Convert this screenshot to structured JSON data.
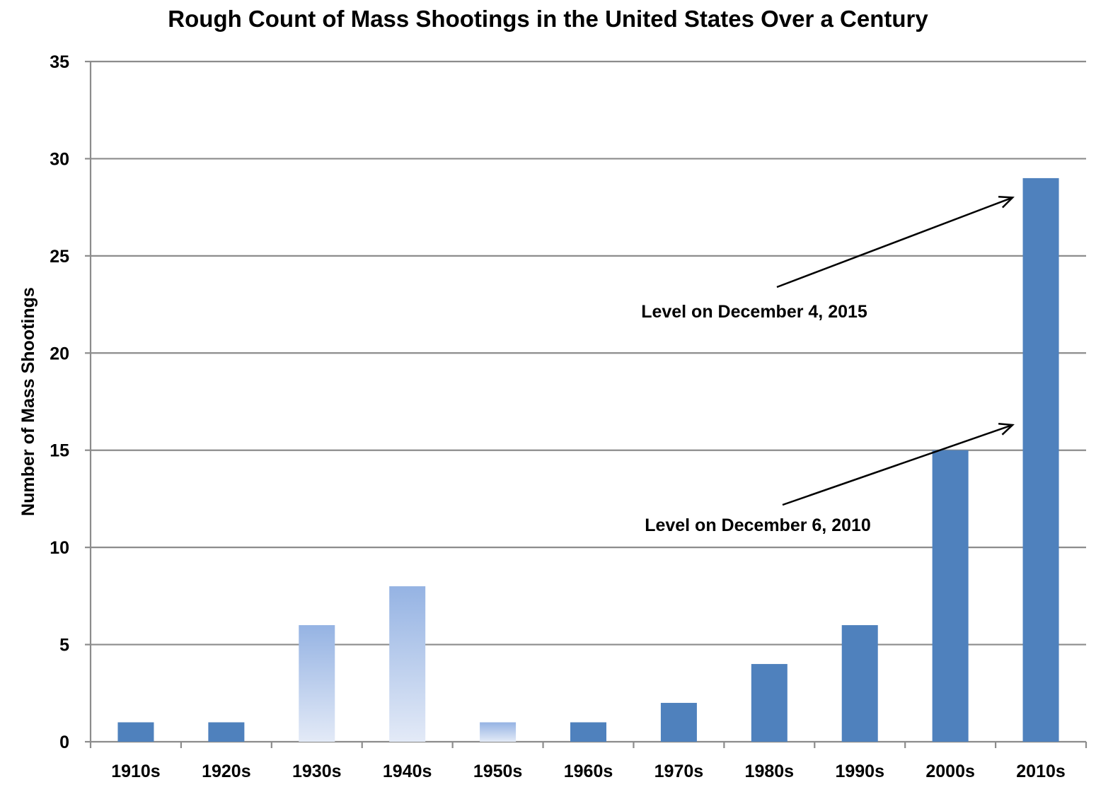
{
  "colors": {
    "bar": "#4F81BD",
    "bar_light_top": "#95B3E3",
    "bar_light_bottom": "#E3EAF7",
    "grid": "#8C8C8C",
    "axis": "#8C8C8C",
    "text": "#000000"
  },
  "chart_data": {
    "type": "bar",
    "title": "Rough Count of Mass Shootings in the United States Over a Century",
    "xlabel": "",
    "ylabel": "Number of Mass Shootings",
    "ylim": [
      0,
      35
    ],
    "yticks": [
      0,
      5,
      10,
      15,
      20,
      25,
      30,
      35
    ],
    "grid": true,
    "categories": [
      "1910s",
      "1920s",
      "1930s",
      "1940s",
      "1950s",
      "1960s",
      "1970s",
      "1980s",
      "1990s",
      "2000s",
      "2010s"
    ],
    "values": [
      1,
      1,
      6,
      8,
      1,
      1,
      2,
      4,
      6,
      15,
      29
    ],
    "bar_styles": [
      "solid",
      "solid",
      "gradient",
      "gradient",
      "gradient",
      "solid",
      "solid",
      "solid",
      "solid",
      "solid",
      "solid"
    ],
    "annotations": [
      {
        "text": "Level on December 4, 2015",
        "category": "2010s",
        "value": 28
      },
      {
        "text": "Level on December 6, 2010",
        "category": "2010s",
        "value": 16.3
      }
    ]
  }
}
